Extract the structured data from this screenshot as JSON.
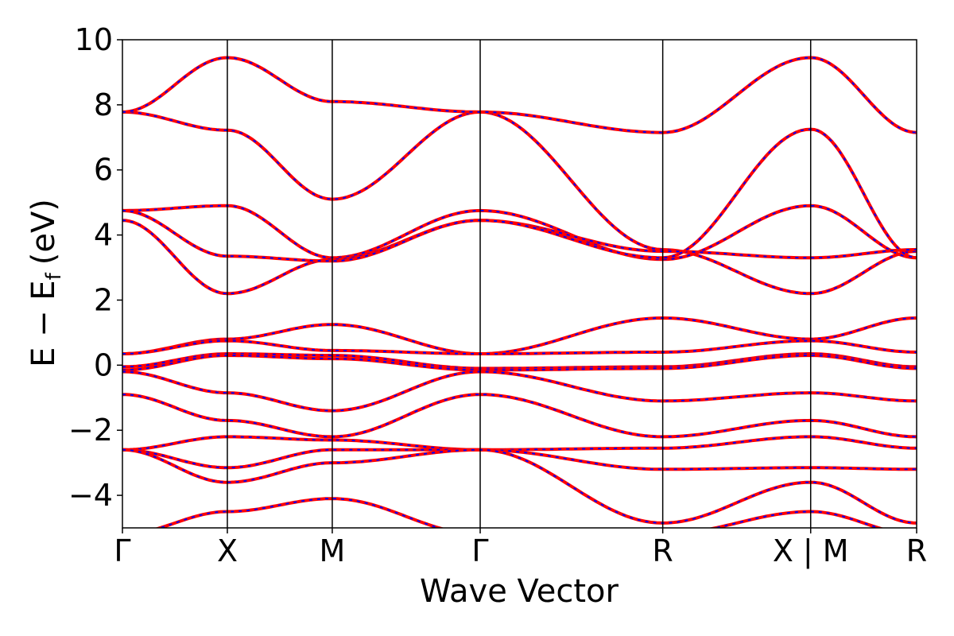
{
  "chart_data": {
    "type": "line",
    "title": "",
    "xlabel": "Wave Vector",
    "ylabel_main": "E − E",
    "ylabel_sub": "f",
    "ylabel_unit": "(eV)",
    "ylim": [
      -5,
      10
    ],
    "yticks": [
      -4,
      -2,
      0,
      2,
      4,
      6,
      8,
      10
    ],
    "ytick_labels": [
      "−4",
      "−2",
      "0",
      "2",
      "4",
      "6",
      "8",
      "10"
    ],
    "kpath_ticks": [
      0,
      1,
      2,
      3.41,
      5.15,
      6.56,
      7.57
    ],
    "kpath_labels": [
      "Γ",
      "X",
      "M",
      "Γ",
      "R",
      "X | M",
      "R"
    ],
    "xlim": [
      0,
      7.57
    ],
    "series_colors": {
      "line_a": "#ff0000",
      "line_b": "#0000ff"
    },
    "bands": [
      {
        "x": [
          0,
          1,
          2,
          3.41,
          5.15,
          6.56,
          7.57
        ],
        "y": [
          7.78,
          7.22,
          5.1,
          7.78,
          3.55,
          2.2,
          3.5
        ]
      },
      {
        "x": [
          0,
          1,
          2,
          3.41,
          5.15,
          6.56,
          7.57
        ],
        "y": [
          7.78,
          9.45,
          8.1,
          7.78,
          7.15,
          9.45,
          7.15
        ]
      },
      {
        "x": [
          0,
          1,
          2,
          3.41,
          5.15,
          6.56,
          7.57
        ],
        "y": [
          4.75,
          4.9,
          3.3,
          4.75,
          3.25,
          4.9,
          3.3
        ]
      },
      {
        "x": [
          0,
          1,
          2,
          3.41,
          5.15,
          6.56,
          7.57
        ],
        "y": [
          4.45,
          2.2,
          3.25,
          4.45,
          3.5,
          3.3,
          3.55
        ]
      },
      {
        "x": [
          0,
          1,
          2,
          3.41,
          5.15,
          6.56,
          7.57
        ],
        "y": [
          4.75,
          3.35,
          3.2,
          4.45,
          3.3,
          7.25,
          3.3
        ]
      },
      {
        "x": [
          0,
          1,
          2,
          3.41,
          5.15,
          6.56,
          7.57
        ],
        "y": [
          0.35,
          0.8,
          1.25,
          0.35,
          1.45,
          0.8,
          1.45
        ]
      },
      {
        "x": [
          0,
          1,
          2,
          3.41,
          5.15,
          6.56,
          7.57
        ],
        "y": [
          0.35,
          0.75,
          0.45,
          0.35,
          0.4,
          0.75,
          0.4
        ]
      },
      {
        "x": [
          0,
          1,
          2,
          3.41,
          5.15,
          6.56,
          7.57
        ],
        "y": [
          -0.05,
          0.35,
          0.3,
          -0.1,
          -0.05,
          0.35,
          -0.05
        ]
      },
      {
        "x": [
          0,
          1,
          2,
          3.41,
          5.15,
          6.56,
          7.57
        ],
        "y": [
          -0.15,
          0.3,
          0.2,
          -0.15,
          -0.1,
          0.3,
          -0.1
        ]
      },
      {
        "x": [
          0,
          1,
          2,
          3.41,
          5.15,
          6.56,
          7.57
        ],
        "y": [
          -0.2,
          -0.85,
          -1.4,
          -0.2,
          -1.1,
          -0.85,
          -1.1
        ]
      },
      {
        "x": [
          0,
          1,
          2,
          3.41,
          5.15,
          6.56,
          7.57
        ],
        "y": [
          -0.9,
          -1.7,
          -2.2,
          -0.9,
          -2.2,
          -1.7,
          -2.2
        ]
      },
      {
        "x": [
          0,
          1,
          2,
          3.41,
          5.15,
          6.56,
          7.57
        ],
        "y": [
          -2.6,
          -2.2,
          -2.3,
          -2.6,
          -2.55,
          -2.2,
          -2.55
        ]
      },
      {
        "x": [
          0,
          1,
          2,
          3.41,
          5.15,
          6.56,
          7.57
        ],
        "y": [
          -2.6,
          -3.15,
          -2.6,
          -2.6,
          -3.2,
          -3.15,
          -3.2
        ]
      },
      {
        "x": [
          0,
          1,
          2,
          3.41,
          5.15,
          6.56,
          7.57
        ],
        "y": [
          -2.6,
          -3.6,
          -3.0,
          -2.6,
          -4.85,
          -3.6,
          -4.85
        ]
      },
      {
        "x": [
          0,
          1,
          2,
          3.41,
          5.15,
          6.56,
          7.57
        ],
        "y": [
          -5.2,
          -4.5,
          -4.1,
          -5.2,
          -5.2,
          -4.5,
          -5.2
        ]
      }
    ]
  }
}
